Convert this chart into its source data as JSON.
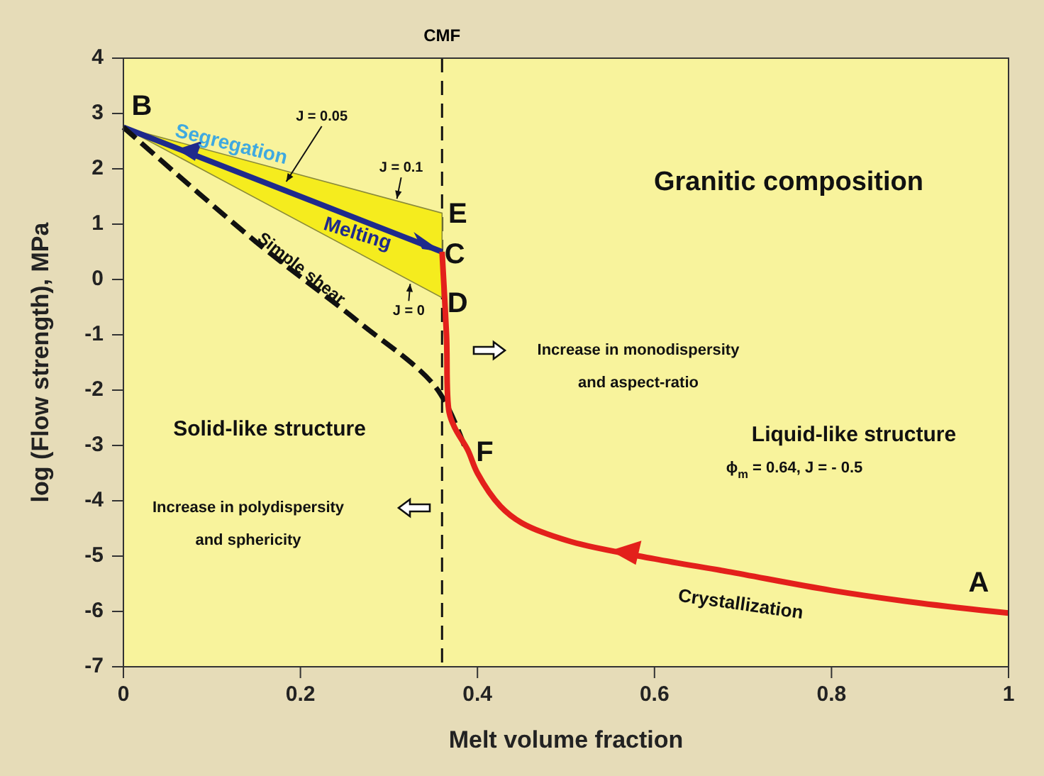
{
  "chart_data": {
    "type": "line",
    "xlabel": "Melt volume fraction",
    "ylabel": "log (Flow strength), MPa",
    "xlim": [
      0,
      1
    ],
    "xticks": [
      0,
      0.2,
      0.4,
      0.6,
      0.8,
      1
    ],
    "ylim": [
      -7,
      4
    ],
    "yticks": [
      -7,
      -6,
      -5,
      -4,
      -3,
      -2,
      -1,
      0,
      1,
      2,
      3,
      4
    ],
    "grid": false,
    "series": [
      {
        "color": "#1f2a8c",
        "x": [
          0,
          0.36
        ],
        "values": [
          2.75,
          0.5
        ],
        "lower": [
          2.75,
          -0.33
        ],
        "upper": [
          2.75,
          1.2
        ]
      },
      {
        "color": "#111111",
        "line_style": "dashed",
        "x": [
          0,
          0.149,
          0.266,
          0.353,
          0.385
        ],
        "values": [
          2.75,
          0.69,
          -0.77,
          -1.95,
          -3.0
        ]
      },
      {
        "color": "#e3201b",
        "x": [
          1,
          0.9,
          0.8,
          0.683,
          0.6,
          0.506,
          0.45,
          0.426,
          0.4,
          0.389,
          0.375,
          0.368,
          0.365,
          0.36
        ],
        "values": [
          -6.03,
          -5.85,
          -5.62,
          -5.28,
          -5.05,
          -4.74,
          -4.4,
          -4.1,
          -3.5,
          -3.08,
          -2.7,
          -2.4,
          -1.0,
          0.5
        ]
      }
    ],
    "ref_lines": [
      {
        "axis": "x",
        "value": 0.36,
        "label": "CMF",
        "line_style": "dashed"
      }
    ],
    "annotations": [
      {
        "text": "B",
        "x": 0,
        "y": 2.75
      },
      {
        "text": "E",
        "x": 0.36,
        "y": 1.2
      },
      {
        "text": "C",
        "x": 0.36,
        "y": 0.5
      },
      {
        "text": "D",
        "x": 0.36,
        "y": -0.33
      },
      {
        "text": "F",
        "x": 0.389,
        "y": -3.08
      },
      {
        "text": "A",
        "x": 1,
        "y": -6.03
      },
      {
        "text": "J = 0.05",
        "x": 0.184,
        "y": 1.77
      },
      {
        "text": "J = 0.1",
        "x": 0.309,
        "y": 1.46
      },
      {
        "text": "J = 0",
        "x": 0.324,
        "y": -0.08
      },
      "Segregation",
      "Granitic composition",
      "Solid-like structure",
      "Liquid-like structure",
      "ϕ$_{m}$ = 0.64, J = - 0.5",
      "Increase in monodispersity\nand aspect-ratio",
      "Increase in polydispersity\nand sphericity",
      "Melting",
      "Simple shear",
      "Crystallization"
    ]
  }
}
